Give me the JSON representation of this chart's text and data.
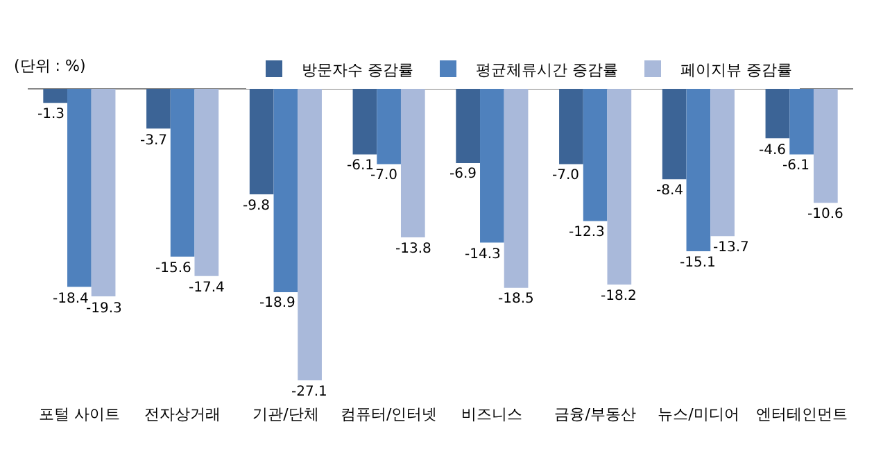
{
  "chart_data": {
    "type": "bar",
    "categories": [
      "포털 사이트",
      "전자상거래",
      "기관/단체",
      "컴퓨터/인터넷",
      "비즈니스",
      "금융/부동산",
      "뉴스/미디어",
      "엔터테인먼트"
    ],
    "series": [
      {
        "name": "방문자수 증감률",
        "color": "#3c6496",
        "values": [
          -1.3,
          -3.7,
          -9.8,
          -6.1,
          -6.9,
          -7.0,
          -8.4,
          -4.6
        ],
        "value_labels": [
          "-1.3",
          "-3.7",
          "-9.8",
          "-6.1",
          "-6.9",
          "-7.0",
          "-8.4",
          "-4.6"
        ]
      },
      {
        "name": "평균체류시간 증감률",
        "color": "#4f81bd",
        "values": [
          -18.4,
          -15.6,
          -18.9,
          -7.0,
          -14.3,
          -12.3,
          -15.1,
          -6.1
        ],
        "value_labels": [
          "-18.4",
          "-15.6",
          "-18.9",
          "-7.0",
          "-14.3",
          "-12.3",
          "-15.1",
          "-6.1"
        ]
      },
      {
        "name": "페이지뷰 증감률",
        "color": "#a9b9da",
        "values": [
          -19.3,
          -17.4,
          -27.1,
          -13.8,
          -18.5,
          -18.2,
          -13.7,
          -10.6
        ],
        "value_labels": [
          "-19.3",
          "-17.4",
          "-27.1",
          "-13.8",
          "-18.5",
          "-18.2",
          "-13.7",
          "-10.6"
        ]
      }
    ],
    "tick_labels": "x",
    "legend": "top",
    "grid": false,
    "annotations": [
      "(단위 : %)"
    ]
  }
}
